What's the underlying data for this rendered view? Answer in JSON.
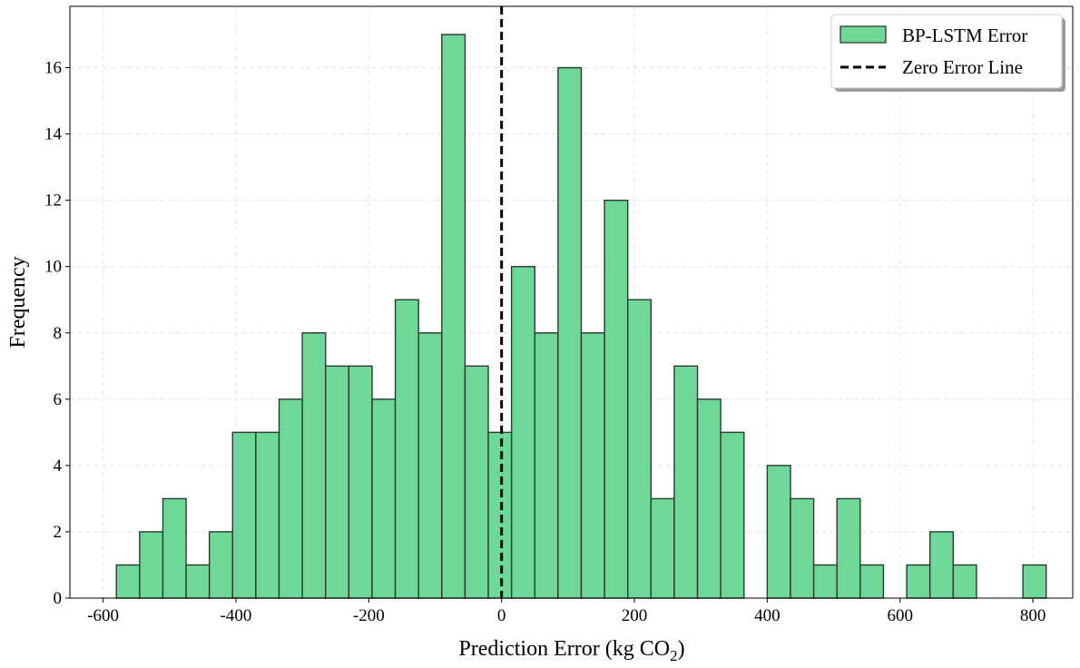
{
  "chart_data": {
    "type": "bar",
    "subtype": "histogram",
    "xlabel_main": "Prediction Error (kg CO",
    "xlabel_sub": "2",
    "xlabel_close": ")",
    "ylabel": "Frequency",
    "xlim": [
      -650,
      860
    ],
    "ylim": [
      0,
      17.85
    ],
    "xticks": [
      -600,
      -400,
      -200,
      0,
      200,
      400,
      600,
      800
    ],
    "xtick_labels": [
      "-600",
      "-400",
      "-200",
      "0",
      "200",
      "400",
      "600",
      "800"
    ],
    "yticks": [
      0,
      2,
      4,
      6,
      8,
      10,
      12,
      14,
      16
    ],
    "ytick_labels": [
      "0",
      "2",
      "4",
      "6",
      "8",
      "10",
      "12",
      "14",
      "16"
    ],
    "grid": true,
    "bin_start": -580,
    "bin_width": 35,
    "bar_color": "#6ed898",
    "bar_edge": "#2b3a2f",
    "series": [
      {
        "name": "BP-LSTM Error",
        "values": [
          1,
          2,
          3,
          1,
          2,
          5,
          5,
          6,
          8,
          7,
          7,
          6,
          9,
          8,
          17,
          7,
          5,
          10,
          8,
          16,
          8,
          12,
          9,
          3,
          7,
          6,
          5,
          0,
          4,
          3,
          1,
          3,
          1,
          0,
          1,
          2,
          1,
          0,
          0,
          1
        ]
      }
    ],
    "reference_line": {
      "x": 0,
      "name": "Zero Error Line",
      "style": "dashed",
      "color": "#000000"
    },
    "legend": {
      "placement": "top-right",
      "entries": [
        "BP-LSTM Error",
        "Zero Error Line"
      ]
    }
  }
}
